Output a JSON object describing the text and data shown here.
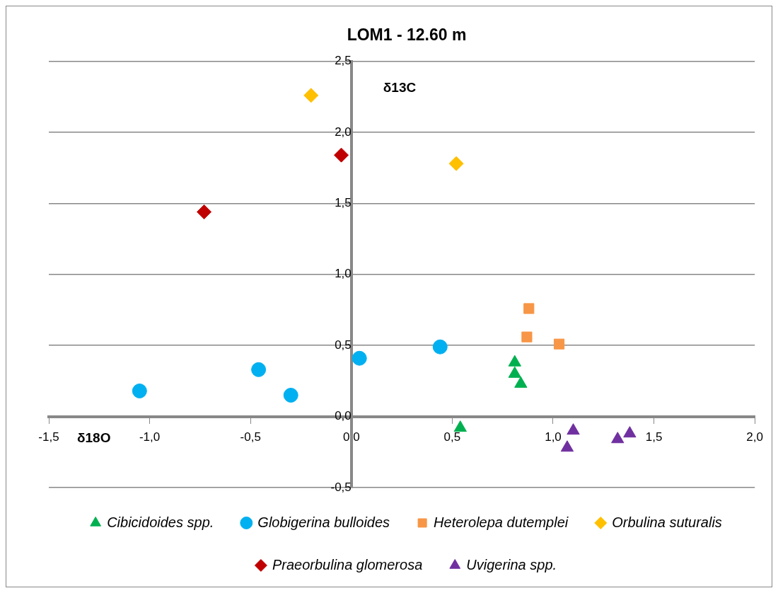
{
  "chart_data": {
    "type": "scatter",
    "title": "LOM1 - 12.60 m",
    "xlabel": "δ18O",
    "ylabel": "δ13C",
    "xlim": [
      -1.5,
      2.0
    ],
    "xticks": [
      {
        "value": -1.5,
        "label": "-1,5"
      },
      {
        "value": -1.0,
        "label": "-1,0"
      },
      {
        "value": -0.5,
        "label": "-0,5"
      },
      {
        "value": 0,
        "label": "0,0"
      },
      {
        "value": 0.5,
        "label": "0,5"
      },
      {
        "value": 1.0,
        "label": "1,0"
      },
      {
        "value": 1.5,
        "label": "1,5"
      },
      {
        "value": 2.0,
        "label": "2,0"
      }
    ],
    "ylim": [
      -0.5,
      2.5
    ],
    "yticks": [
      {
        "value": -0.5,
        "label": "-0,5"
      },
      {
        "value": 0,
        "label": "0,0"
      },
      {
        "value": 0.5,
        "label": "0,5"
      },
      {
        "value": 1.0,
        "label": "1,0"
      },
      {
        "value": 1.5,
        "label": "1,5"
      },
      {
        "value": 2.0,
        "label": "2,0"
      },
      {
        "value": 2.5,
        "label": "2,5"
      }
    ],
    "grid": "y",
    "legend": "bottom",
    "series": [
      {
        "name": "Cibicidoides spp.",
        "color": "#00b050",
        "marker": "triangle",
        "x": [
          0.81,
          0.81,
          0.84,
          0.54
        ],
        "values": [
          0.38,
          0.3,
          0.23,
          -0.08
        ]
      },
      {
        "name": "Globigerina bulloides",
        "color": "#00b0f0",
        "marker": "circle",
        "x": [
          -1.05,
          -0.46,
          -0.3,
          0.04,
          0.44
        ],
        "values": [
          0.18,
          0.33,
          0.15,
          0.41,
          0.49
        ]
      },
      {
        "name": "Heterolepa dutemplei",
        "color": "#f79646",
        "marker": "square",
        "x": [
          0.88,
          0.87,
          1.03
        ],
        "values": [
          0.76,
          0.56,
          0.51
        ]
      },
      {
        "name": "Orbulina suturalis",
        "color": "#ffc000",
        "marker": "diamond",
        "x": [
          -0.2,
          0.52
        ],
        "values": [
          2.26,
          1.78
        ]
      },
      {
        "name": "Praeorbulina glomerosa",
        "color": "#c00000",
        "marker": "diamond",
        "x": [
          -0.73,
          -0.05
        ],
        "values": [
          1.44,
          1.84
        ]
      },
      {
        "name": "Uvigerina spp.",
        "color": "#7030a0",
        "marker": "triangle",
        "x": [
          1.1,
          1.07,
          1.32,
          1.38
        ],
        "values": [
          -0.1,
          -0.22,
          -0.16,
          -0.12
        ]
      }
    ]
  }
}
